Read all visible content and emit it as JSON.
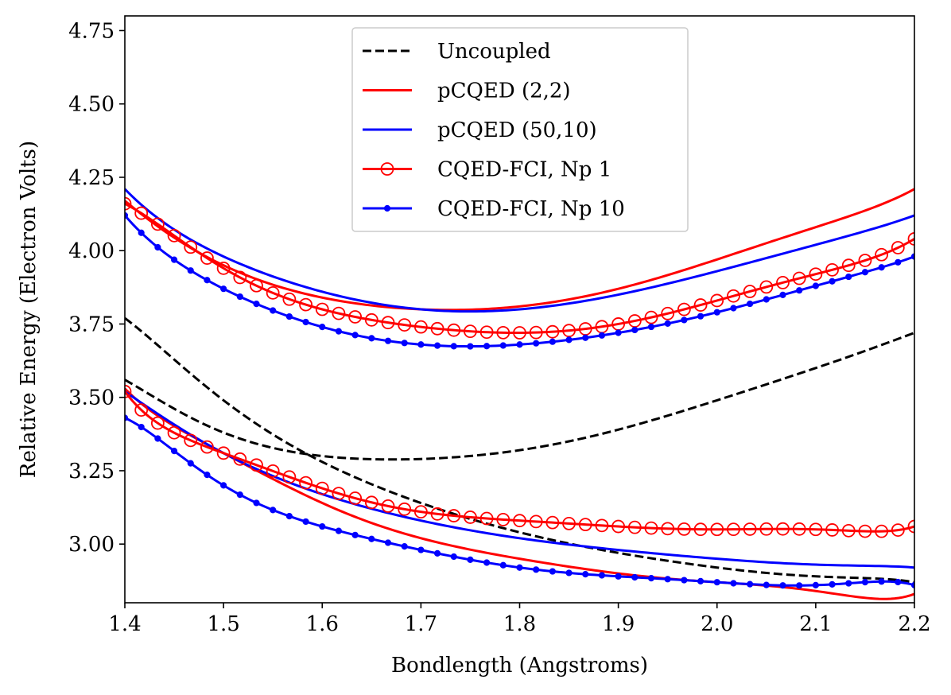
{
  "chart_data": {
    "type": "line",
    "title": "",
    "xlabel": "Bondlength (Angstroms)",
    "ylabel": "Relative Energy (Electron Volts)",
    "xlim": [
      1.4,
      2.2
    ],
    "ylim": [
      2.8,
      4.8
    ],
    "xticks": [
      "1.4",
      "1.5",
      "1.6",
      "1.7",
      "1.8",
      "1.9",
      "2.0",
      "2.1",
      "2.2"
    ],
    "yticks": [
      "3.00",
      "3.25",
      "3.50",
      "3.75",
      "4.00",
      "4.25",
      "4.50",
      "4.75"
    ],
    "grid": false,
    "legend_position": "top-center",
    "legend": [
      {
        "label": "Uncoupled",
        "color": "#000000",
        "style": "dashed",
        "marker": "none"
      },
      {
        "label": "pCQED (2,2)",
        "color": "#ff0000",
        "style": "solid",
        "marker": "none"
      },
      {
        "label": "pCQED (50,10)",
        "color": "#0000ff",
        "style": "solid",
        "marker": "none"
      },
      {
        "label": "CQED-FCI, Np 1",
        "color": "#ff0000",
        "style": "solid",
        "marker": "open-circle"
      },
      {
        "label": "CQED-FCI, Np 10",
        "color": "#0000ff",
        "style": "solid",
        "marker": "dot"
      }
    ],
    "x": [
      1.4,
      1.5,
      1.6,
      1.7,
      1.8,
      1.9,
      2.0,
      2.1,
      2.2
    ],
    "series": [
      {
        "name": "Uncoupled",
        "color": "#000000",
        "style": "dashed",
        "marker": "none",
        "values": [
          3.77,
          3.49,
          3.28,
          3.14,
          3.04,
          2.97,
          2.92,
          2.89,
          2.87
        ]
      },
      {
        "name": "Uncoupled",
        "color": "#000000",
        "style": "dashed",
        "marker": "none",
        "values": [
          3.56,
          3.38,
          3.3,
          3.29,
          3.32,
          3.39,
          3.49,
          3.6,
          3.72
        ]
      },
      {
        "name": "pCQED (2,2)",
        "color": "#ff0000",
        "style": "solid",
        "marker": "none",
        "values": [
          3.53,
          3.31,
          3.14,
          3.02,
          2.95,
          2.9,
          2.87,
          2.84,
          2.83
        ]
      },
      {
        "name": "pCQED (2,2)",
        "color": "#ff0000",
        "style": "solid",
        "marker": "none",
        "values": [
          4.17,
          3.95,
          3.84,
          3.8,
          3.81,
          3.87,
          3.97,
          4.08,
          4.21
        ]
      },
      {
        "name": "pCQED (50,10)",
        "color": "#0000ff",
        "style": "solid",
        "marker": "none",
        "values": [
          3.52,
          3.31,
          3.17,
          3.08,
          3.02,
          2.98,
          2.95,
          2.93,
          2.92
        ]
      },
      {
        "name": "pCQED (50,10)",
        "color": "#0000ff",
        "style": "solid",
        "marker": "none",
        "values": [
          4.21,
          3.98,
          3.86,
          3.8,
          3.8,
          3.85,
          3.93,
          4.02,
          4.12
        ]
      },
      {
        "name": "CQED-FCI, Np 1",
        "color": "#ff0000",
        "style": "solid",
        "marker": "open-circle",
        "values": [
          3.52,
          3.31,
          3.19,
          3.11,
          3.08,
          3.06,
          3.05,
          3.05,
          3.06
        ]
      },
      {
        "name": "CQED-FCI, Np 1",
        "color": "#ff0000",
        "style": "solid",
        "marker": "open-circle",
        "values": [
          4.16,
          3.94,
          3.8,
          3.74,
          3.72,
          3.75,
          3.83,
          3.92,
          4.04
        ]
      },
      {
        "name": "CQED-FCI, Np 10",
        "color": "#0000ff",
        "style": "solid",
        "marker": "dot",
        "values": [
          3.43,
          3.2,
          3.06,
          2.98,
          2.92,
          2.89,
          2.87,
          2.86,
          2.86
        ]
      },
      {
        "name": "CQED-FCI, Np 10",
        "color": "#0000ff",
        "style": "solid",
        "marker": "dot",
        "values": [
          4.12,
          3.87,
          3.74,
          3.68,
          3.68,
          3.72,
          3.79,
          3.88,
          3.98
        ]
      }
    ]
  }
}
